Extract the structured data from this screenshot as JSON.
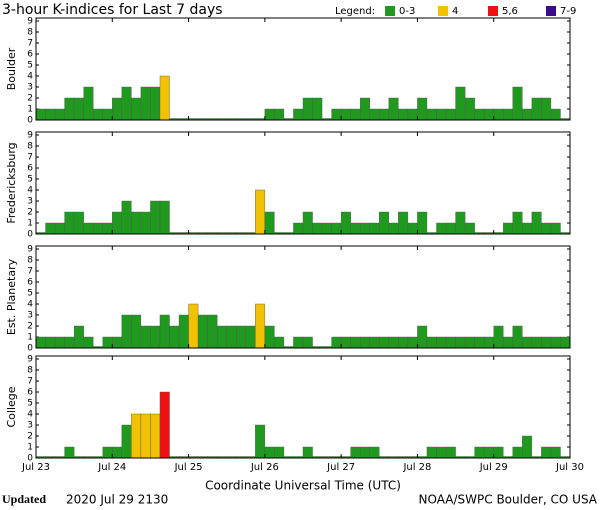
{
  "title": "3-hour K-indices for Last 7 days",
  "legend": {
    "title": "Legend:",
    "entries": [
      {
        "label": "0-3",
        "color": "#1f9a1f"
      },
      {
        "label": "4",
        "color": "#f2c200"
      },
      {
        "label": "5,6",
        "color": "#ee1111"
      },
      {
        "label": "7-9",
        "color": "#3d0a8c"
      }
    ]
  },
  "xticks": [
    "Jul 23",
    "Jul 24",
    "Jul 25",
    "Jul 26",
    "Jul 27",
    "Jul 28",
    "Jul 29",
    "Jul 30"
  ],
  "xlabel": "Coordinate Universal Time (UTC)",
  "footer": {
    "updated_label": "Updated",
    "updated": "2020 Jul 29 2130",
    "source": "NOAA/SWPC Boulder, CO USA"
  },
  "chart_data": [
    {
      "type": "bar",
      "ylabel": "Boulder",
      "ylim": [
        0,
        9
      ],
      "yticks": [
        0,
        1,
        2,
        3,
        4,
        5,
        6,
        7,
        8,
        9
      ],
      "values": [
        1,
        1,
        1,
        2,
        2,
        3,
        1,
        1,
        2,
        3,
        2,
        3,
        3,
        4,
        0,
        0,
        0,
        0,
        0,
        0,
        0,
        0,
        0,
        0,
        1,
        1,
        0,
        1,
        2,
        2,
        0,
        1,
        1,
        1,
        2,
        1,
        1,
        2,
        1,
        1,
        2,
        1,
        1,
        1,
        3,
        2,
        1,
        1,
        1,
        1,
        3,
        1,
        2,
        2,
        1,
        0
      ]
    },
    {
      "type": "bar",
      "ylabel": "Fredericksburg",
      "ylim": [
        0,
        9
      ],
      "yticks": [
        0,
        1,
        2,
        3,
        4,
        5,
        6,
        7,
        8,
        9
      ],
      "values": [
        0,
        1,
        1,
        2,
        2,
        1,
        1,
        1,
        2,
        3,
        2,
        2,
        3,
        3,
        0,
        0,
        0,
        0,
        0,
        0,
        0,
        0,
        0,
        4,
        2,
        0,
        0,
        1,
        2,
        1,
        1,
        1,
        2,
        1,
        1,
        1,
        2,
        1,
        2,
        1,
        2,
        0,
        1,
        1,
        2,
        1,
        0,
        0,
        0,
        1,
        2,
        1,
        2,
        1,
        1,
        0
      ]
    },
    {
      "type": "bar",
      "ylabel": "Est. Planetary",
      "ylim": [
        0,
        9
      ],
      "yticks": [
        0,
        1,
        2,
        3,
        4,
        5,
        6,
        7,
        8,
        9
      ],
      "values": [
        1,
        1,
        1,
        1,
        2,
        1,
        0,
        1,
        1,
        3,
        3,
        2,
        2,
        3,
        2,
        3,
        4,
        3,
        3,
        2,
        2,
        2,
        2,
        4,
        2,
        1,
        0,
        1,
        1,
        0,
        0,
        1,
        1,
        1,
        1,
        1,
        1,
        1,
        1,
        1,
        2,
        1,
        1,
        1,
        1,
        1,
        1,
        1,
        2,
        1,
        2,
        1,
        1,
        1,
        1,
        1
      ]
    },
    {
      "type": "bar",
      "ylabel": "College",
      "ylim": [
        0,
        9
      ],
      "yticks": [
        0,
        1,
        2,
        3,
        4,
        5,
        6,
        7,
        8,
        9
      ],
      "values": [
        0,
        0,
        0,
        1,
        0,
        0,
        0,
        1,
        1,
        3,
        4,
        4,
        4,
        6,
        0,
        0,
        0,
        0,
        0,
        0,
        0,
        0,
        0,
        3,
        1,
        1,
        0,
        0,
        1,
        0,
        0,
        0,
        0,
        1,
        1,
        1,
        0,
        0,
        0,
        0,
        0,
        1,
        1,
        1,
        0,
        0,
        1,
        1,
        1,
        0,
        1,
        2,
        0,
        1,
        1,
        0
      ]
    }
  ]
}
